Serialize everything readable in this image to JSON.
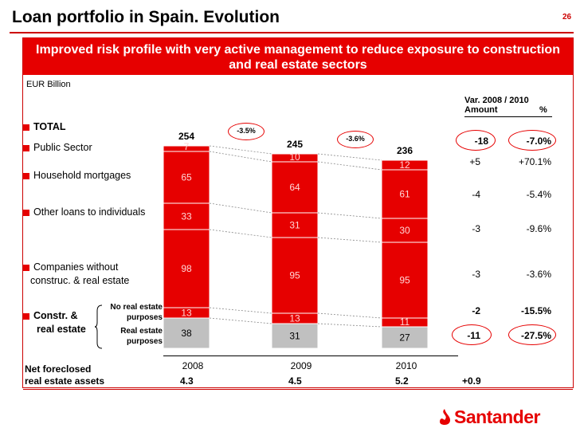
{
  "header": {
    "title": "Loan portfolio in Spain. Evolution",
    "page_number": "26",
    "banner": "Improved risk profile with very active management to reduce exposure to construction and real estate sectors",
    "unit": "EUR Billion"
  },
  "variation": {
    "header": "Var. 2008 / 2010",
    "col_amount": "Amount",
    "col_pct": "%",
    "rows": [
      {
        "amount": "-18",
        "pct": "-7.0%"
      },
      {
        "amount": "+5",
        "pct": "+70.1%"
      },
      {
        "amount": "-4",
        "pct": "-5.4%"
      },
      {
        "amount": "-3",
        "pct": "-9.6%"
      },
      {
        "amount": "-3",
        "pct": "-3.6%"
      },
      {
        "amount": "-2",
        "pct": "-15.5%"
      },
      {
        "amount": "-11",
        "pct": "-27.5%"
      }
    ]
  },
  "labels": {
    "total": "TOTAL",
    "public": "Public Sector",
    "mortgages": "Household mortgages",
    "other": "Other loans to individuals",
    "companies_1": "Companies without",
    "companies_2": "construc. & real estate",
    "constr_1": "Constr. &",
    "constr_2": "real estate",
    "no_re_1": "No real estate",
    "no_re_2": "purposes",
    "re_1": "Real estate",
    "re_2": "purposes"
  },
  "growth": [
    "-3.5%",
    "-3.6%"
  ],
  "footer": {
    "line1": "Net foreclosed",
    "line2": "real estate assets",
    "values": [
      "4.3",
      "4.5",
      "5.2",
      "+0.9"
    ]
  },
  "brand": {
    "name": "Santander",
    "accent": "#e60000",
    "grey": "#c0c0c0"
  },
  "chart_data": {
    "type": "bar",
    "stacked": true,
    "title": "Loan portfolio in Spain. Evolution",
    "ylabel": "EUR Billion",
    "categories": [
      "2008",
      "2009",
      "2010"
    ],
    "totals": [
      254,
      245,
      236
    ],
    "series": [
      {
        "name": "Real estate purposes",
        "values": [
          38,
          31,
          27
        ]
      },
      {
        "name": "No real estate purposes",
        "values": [
          13,
          13,
          11
        ]
      },
      {
        "name": "Companies without construc. & real estate",
        "values": [
          98,
          95,
          95
        ]
      },
      {
        "name": "Other loans to individuals",
        "values": [
          33,
          31,
          30
        ]
      },
      {
        "name": "Household mortgages",
        "values": [
          65,
          64,
          61
        ]
      },
      {
        "name": "Public Sector",
        "values": [
          7,
          10,
          12
        ]
      }
    ]
  }
}
